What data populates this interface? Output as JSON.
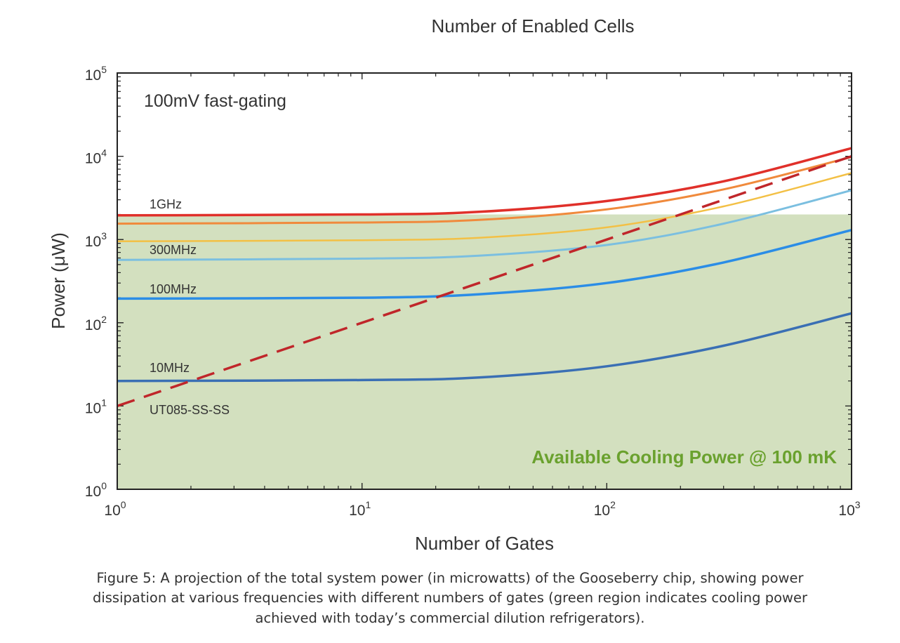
{
  "chart_data": {
    "type": "line",
    "title": "Number of Enabled Cells",
    "xlabel": "Number of Gates",
    "ylabel": "Power (μW)",
    "xscale": "log",
    "yscale": "log",
    "xlim": [
      1,
      1000
    ],
    "ylim": [
      1,
      100000
    ],
    "x_tick_labels": [
      {
        "value": 1,
        "base": "10",
        "exp": "0"
      },
      {
        "value": 10,
        "base": "10",
        "exp": "1"
      },
      {
        "value": 100,
        "base": "10",
        "exp": "2"
      },
      {
        "value": 1000,
        "base": "10",
        "exp": "3"
      }
    ],
    "y_tick_labels": [
      {
        "value": 1,
        "base": "10",
        "exp": "0"
      },
      {
        "value": 10,
        "base": "10",
        "exp": "1"
      },
      {
        "value": 100,
        "base": "10",
        "exp": "2"
      },
      {
        "value": 1000,
        "base": "10",
        "exp": "3"
      },
      {
        "value": 10000,
        "base": "10",
        "exp": "4"
      },
      {
        "value": 100000,
        "base": "10",
        "exp": "5"
      }
    ],
    "annotation": "100mV fast-gating",
    "region": {
      "label": "Available Cooling Power @ 100 mK",
      "y_max": 2000,
      "color": "#d3e0bf",
      "label_color": "#6aa12e"
    },
    "series": [
      {
        "name": "1GHz",
        "label": "1GHz",
        "color": "#e0302a",
        "width": 3.5,
        "dashed": false,
        "points": [
          [
            1,
            1950
          ],
          [
            10,
            2000
          ],
          [
            30,
            2150
          ],
          [
            100,
            2900
          ],
          [
            300,
            5000
          ],
          [
            1000,
            12500
          ]
        ]
      },
      {
        "name": "series-2",
        "label": "",
        "color": "#f08a3c",
        "width": 3,
        "dashed": false,
        "points": [
          [
            1,
            1550
          ],
          [
            10,
            1600
          ],
          [
            30,
            1720
          ],
          [
            100,
            2300
          ],
          [
            300,
            4000
          ],
          [
            1000,
            9800
          ]
        ]
      },
      {
        "name": "300MHz",
        "label": "300MHz",
        "color": "#f3c045",
        "width": 2.5,
        "dashed": false,
        "points": [
          [
            1,
            950
          ],
          [
            10,
            980
          ],
          [
            30,
            1050
          ],
          [
            100,
            1400
          ],
          [
            300,
            2500
          ],
          [
            1000,
            6300
          ]
        ]
      },
      {
        "name": "series-4",
        "label": "",
        "color": "#7bbfe0",
        "width": 3,
        "dashed": false,
        "points": [
          [
            1,
            570
          ],
          [
            10,
            590
          ],
          [
            30,
            640
          ],
          [
            100,
            860
          ],
          [
            300,
            1550
          ],
          [
            1000,
            3900
          ]
        ]
      },
      {
        "name": "100MHz",
        "label": "100MHz",
        "color": "#2b8de6",
        "width": 3.5,
        "dashed": false,
        "points": [
          [
            1,
            195
          ],
          [
            10,
            200
          ],
          [
            30,
            220
          ],
          [
            100,
            300
          ],
          [
            300,
            530
          ],
          [
            1000,
            1300
          ]
        ]
      },
      {
        "name": "10MHz",
        "label": "10MHz",
        "color": "#3a6fb4",
        "width": 3.5,
        "dashed": false,
        "points": [
          [
            1,
            20
          ],
          [
            10,
            20.5
          ],
          [
            30,
            22
          ],
          [
            100,
            30
          ],
          [
            300,
            53
          ],
          [
            1000,
            130
          ]
        ]
      },
      {
        "name": "UT085-SS-SS",
        "label": "UT085-SS-SS",
        "color": "#c0262a",
        "width": 3.5,
        "dashed": true,
        "points": [
          [
            1,
            10
          ],
          [
            1000,
            10000
          ]
        ]
      }
    ]
  },
  "caption": {
    "lines": [
      "Figure 5: A projection of the total system power (in microwatts) of the Gooseberry chip, showing power",
      "dissipation at various frequencies with different numbers of gates (green region indicates cooling power",
      "achieved with today’s commercial dilution refrigerators)."
    ]
  }
}
